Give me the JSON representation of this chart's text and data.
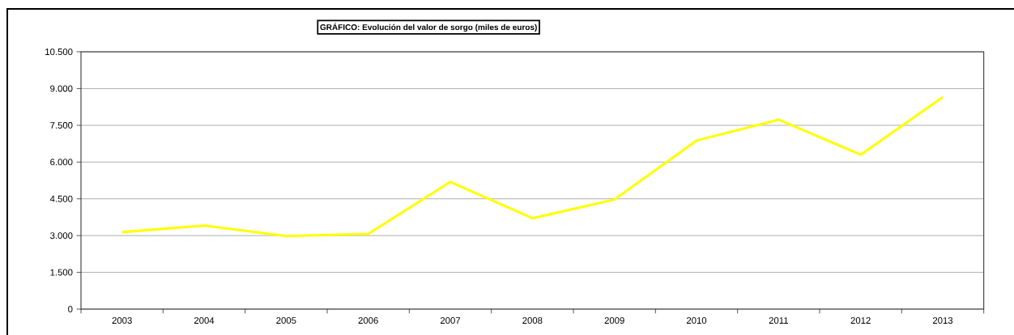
{
  "chart_data": {
    "type": "line",
    "title": "GRÁFICO: Evolución del valor de sorgo (miles de euros)",
    "categories": [
      "2003",
      "2004",
      "2005",
      "2006",
      "2007",
      "2008",
      "2009",
      "2010",
      "2011",
      "2012",
      "2013"
    ],
    "values": [
      3140,
      3410,
      2980,
      3070,
      5190,
      3710,
      4470,
      6880,
      7730,
      6300,
      8650
    ],
    "color": "#ffff00",
    "ylim": [
      0,
      10500
    ],
    "yticks": [
      0,
      {
        "value": 1500,
        "label": "1.500"
      },
      {
        "value": 3000,
        "label": "3.000"
      },
      {
        "value": 4500,
        "label": "4.500"
      },
      {
        "value": 6000,
        "label": "6.000"
      },
      {
        "value": 7500,
        "label": "7.500"
      },
      {
        "value": 9000,
        "label": "9.000"
      },
      {
        "value": 10500,
        "label": "10.500"
      }
    ],
    "grid": "y"
  }
}
